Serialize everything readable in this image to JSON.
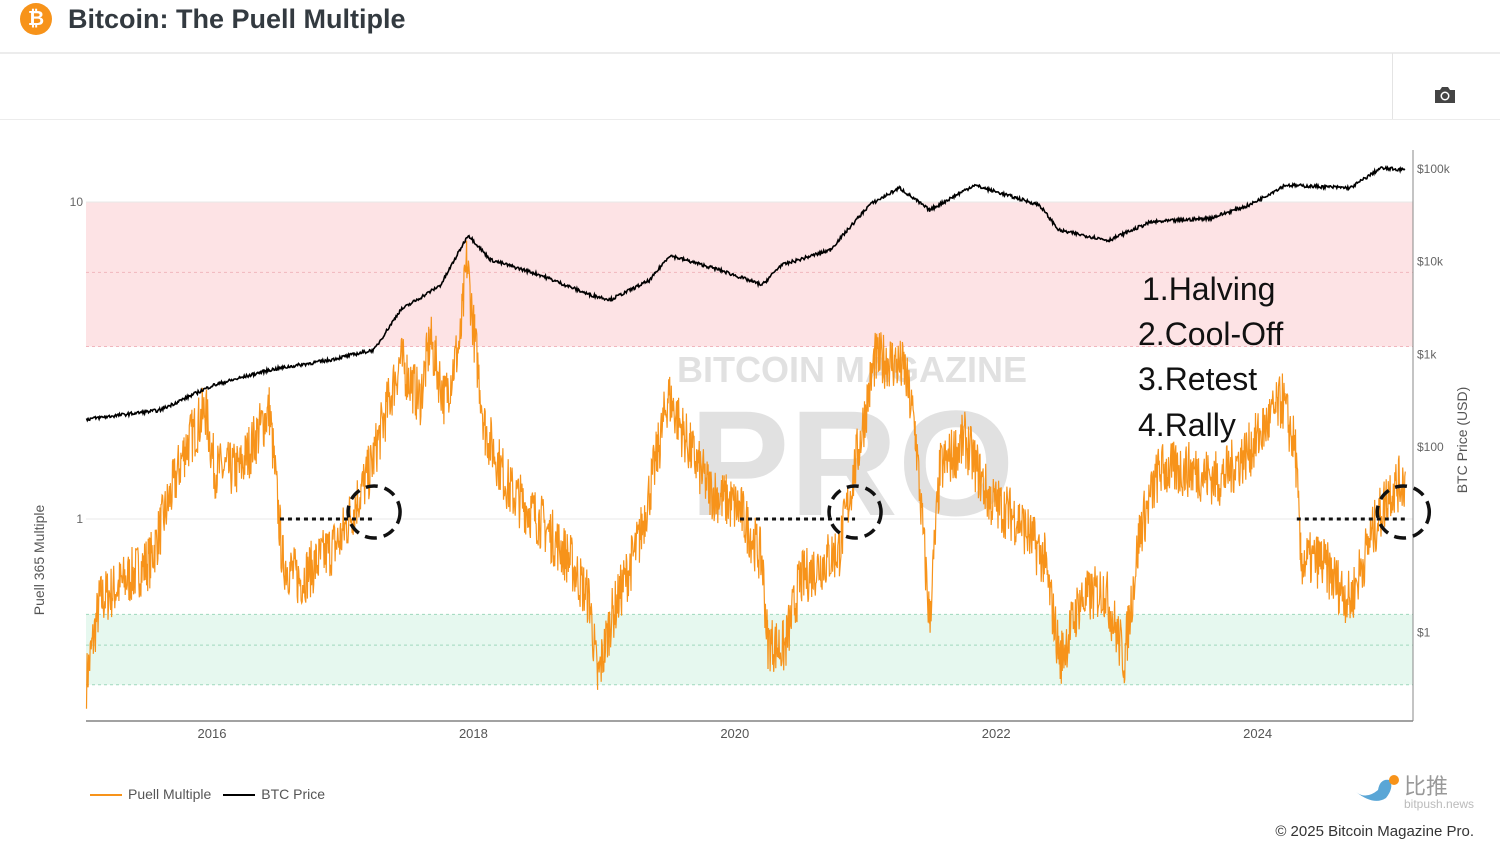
{
  "header": {
    "title": "Bitcoin: The Puell Multiple",
    "logo_icon": "bitcoin-logo-icon",
    "logo_glyph": "₿"
  },
  "toolbar": {
    "camera_icon": "camera-icon"
  },
  "annotations": {
    "steps": [
      "1.Halving",
      "2.Cool-Off",
      "3.Retest",
      "4.Rally"
    ],
    "retest_lines": [
      {
        "from": 2016.52,
        "to": 2017.24,
        "level": 1
      },
      {
        "from": 2020.04,
        "to": 2020.92,
        "level": 1
      },
      {
        "from": 2024.3,
        "to": 2025.13,
        "level": 1
      }
    ]
  },
  "watermark": {
    "top": "BITCOIN MAGAZINE",
    "bottom": "PRO"
  },
  "footer": {
    "copyright": "© 2025 Bitcoin Magazine Pro.",
    "source_logo": "比推",
    "source_url": "bitpush.news"
  },
  "chart_data": {
    "type": "line",
    "title": "Bitcoin: The Puell Multiple",
    "ylabel": "Puell 365 Multiple",
    "y2label": "BTC Price (USD)",
    "y_scale": "log",
    "y2_scale": "log",
    "xlim": [
      2015.04,
      2025.2
    ],
    "ylim": [
      0.25,
      14
    ],
    "y2lim": [
      0.2,
      160000
    ],
    "x_ticks": [
      "2016",
      "2018",
      "2020",
      "2022",
      "2024"
    ],
    "y_ticks": [
      {
        "value": 10,
        "label": "10"
      },
      {
        "value": 1,
        "label": "1"
      }
    ],
    "y2_ticks": [
      {
        "value": 100000,
        "label": "$100k"
      },
      {
        "value": 10000,
        "label": "$10k"
      },
      {
        "value": 1000,
        "label": "$1k"
      },
      {
        "value": 100,
        "label": "$100"
      },
      {
        "value": 1,
        "label": "$1"
      }
    ],
    "bands": [
      {
        "from": 3.5,
        "to": 10,
        "color": "#fde3e5",
        "mid": 6
      },
      {
        "from": 0.3,
        "to": 0.5,
        "color": "#e6f8ef",
        "mid": 0.4
      }
    ],
    "legend_position": "bottom-left",
    "series": [
      {
        "name": "Puell Multiple",
        "axis": "left",
        "color": "#f7931a",
        "points": [
          [
            2015.04,
            0.31
          ],
          [
            2015.14,
            0.55
          ],
          [
            2015.53,
            0.74
          ],
          [
            2015.79,
            1.65
          ],
          [
            2015.95,
            2.21
          ],
          [
            2016.02,
            1.43
          ],
          [
            2016.21,
            1.43
          ],
          [
            2016.44,
            2.21
          ],
          [
            2016.54,
            0.74
          ],
          [
            2016.67,
            0.64
          ],
          [
            2016.98,
            0.86
          ],
          [
            2017.21,
            1.43
          ],
          [
            2017.44,
            3.17
          ],
          [
            2017.59,
            2.37
          ],
          [
            2017.67,
            3.67
          ],
          [
            2017.78,
            2.37
          ],
          [
            2017.9,
            3.67
          ],
          [
            2017.95,
            6.56
          ],
          [
            2018.01,
            3.67
          ],
          [
            2018.09,
            1.91
          ],
          [
            2018.28,
            1.23
          ],
          [
            2018.51,
            0.99
          ],
          [
            2018.74,
            0.74
          ],
          [
            2018.89,
            0.55
          ],
          [
            2018.95,
            0.31
          ],
          [
            2019.05,
            0.48
          ],
          [
            2019.27,
            0.86
          ],
          [
            2019.43,
            1.78
          ],
          [
            2019.49,
            2.46
          ],
          [
            2019.66,
            1.65
          ],
          [
            2019.81,
            1.23
          ],
          [
            2020.04,
            1.07
          ],
          [
            2020.21,
            0.74
          ],
          [
            2020.25,
            0.41
          ],
          [
            2020.38,
            0.39
          ],
          [
            2020.5,
            0.64
          ],
          [
            2020.8,
            0.8
          ],
          [
            2020.96,
            1.78
          ],
          [
            2021.07,
            3.17
          ],
          [
            2021.19,
            3.17
          ],
          [
            2021.3,
            2.95
          ],
          [
            2021.38,
            1.91
          ],
          [
            2021.49,
            0.48
          ],
          [
            2021.57,
            1.43
          ],
          [
            2021.76,
            1.78
          ],
          [
            2021.95,
            1.15
          ],
          [
            2022.18,
            0.99
          ],
          [
            2022.37,
            0.74
          ],
          [
            2022.49,
            0.36
          ],
          [
            2022.64,
            0.55
          ],
          [
            2022.83,
            0.6
          ],
          [
            2022.98,
            0.36
          ],
          [
            2023.1,
            0.92
          ],
          [
            2023.25,
            1.43
          ],
          [
            2023.48,
            1.43
          ],
          [
            2023.71,
            1.33
          ],
          [
            2023.94,
            1.65
          ],
          [
            2024.19,
            2.37
          ],
          [
            2024.29,
            1.65
          ],
          [
            2024.33,
            0.74
          ],
          [
            2024.48,
            0.74
          ],
          [
            2024.71,
            0.55
          ],
          [
            2024.86,
            0.86
          ],
          [
            2025.01,
            1.23
          ],
          [
            2025.13,
            1.33
          ]
        ]
      },
      {
        "name": "BTC Price",
        "axis": "right",
        "color": "#000000",
        "points": [
          [
            2015.04,
            200
          ],
          [
            2015.6,
            250
          ],
          [
            2016.0,
            460
          ],
          [
            2016.44,
            680
          ],
          [
            2016.9,
            870
          ],
          [
            2017.24,
            1120
          ],
          [
            2017.44,
            3000
          ],
          [
            2017.75,
            5600
          ],
          [
            2017.96,
            19500
          ],
          [
            2018.13,
            10500
          ],
          [
            2018.51,
            7200
          ],
          [
            2018.89,
            4400
          ],
          [
            2019.05,
            3900
          ],
          [
            2019.35,
            6300
          ],
          [
            2019.5,
            11700
          ],
          [
            2019.89,
            8100
          ],
          [
            2020.21,
            5600
          ],
          [
            2020.35,
            9100
          ],
          [
            2020.73,
            13400
          ],
          [
            2021.03,
            41000
          ],
          [
            2021.26,
            62500
          ],
          [
            2021.49,
            36000
          ],
          [
            2021.83,
            67000
          ],
          [
            2022.33,
            41000
          ],
          [
            2022.48,
            21800
          ],
          [
            2022.86,
            17000
          ],
          [
            2023.18,
            26700
          ],
          [
            2023.64,
            29500
          ],
          [
            2023.94,
            41000
          ],
          [
            2024.21,
            67000
          ],
          [
            2024.71,
            62500
          ],
          [
            2024.94,
            102000
          ],
          [
            2025.13,
            98000
          ]
        ]
      }
    ]
  }
}
